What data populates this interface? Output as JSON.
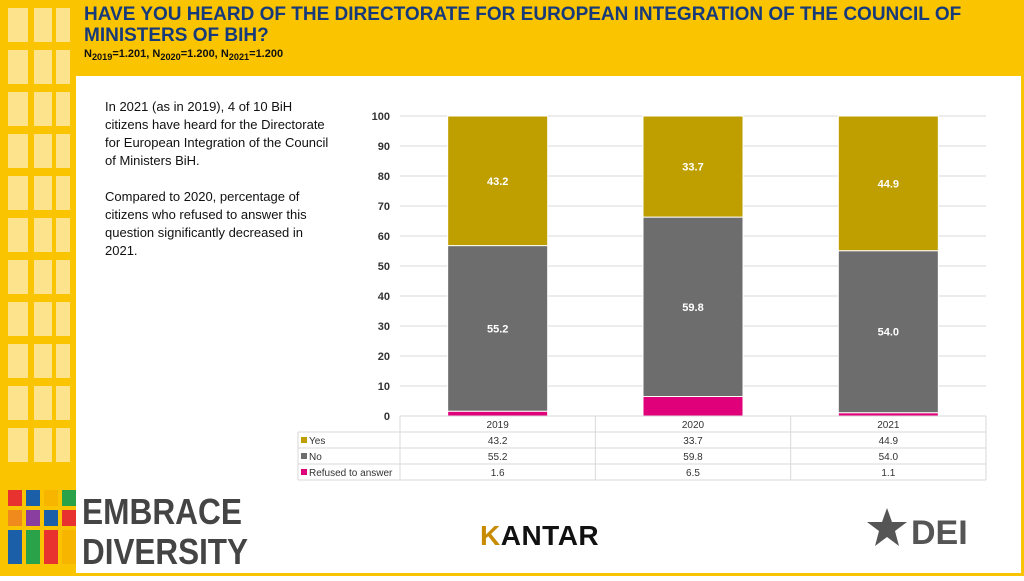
{
  "header": {
    "title": "HAVE YOU HEARD OF THE DIRECTORATE FOR EUROPEAN INTEGRATION OF THE COUNCIL OF MINISTERS OF BIH?",
    "n_parts": [
      {
        "prefix": "N",
        "sub": "2019",
        "value": "=1.201, "
      },
      {
        "prefix": "N",
        "sub": "2020",
        "value": "=1.200, "
      },
      {
        "prefix": "N",
        "sub": "2021",
        "value": "=1.200"
      }
    ]
  },
  "notes": {
    "p1": "In 2021 (as in 2019), 4 of 10 BiH citizens have heard for the Directorate for European Integration of the Council of Ministers BiH.",
    "p2": "Compared to 2020, percentage of citizens who refused to answer this question significantly decreased in 2021."
  },
  "logos": {
    "embrace_line1": "EMBRACE",
    "embrace_line2": "DIVERSITY",
    "kantar_k": "K",
    "kantar_rest": "ANTAR",
    "dei": "DEI"
  },
  "colors": {
    "yes": "#bf9f00",
    "no": "#6d6d6d",
    "refused": "#e0007a",
    "brand_yellow": "#fbc400",
    "title_blue": "#173a7a"
  },
  "chart_data": {
    "type": "bar",
    "stacked": true,
    "categories": [
      "2019",
      "2020",
      "2021"
    ],
    "series": [
      {
        "name": "Yes",
        "values": [
          43.2,
          33.7,
          44.9
        ],
        "labels": [
          "43.2",
          "33.7",
          "44.9"
        ]
      },
      {
        "name": "No",
        "values": [
          55.2,
          59.8,
          54.0
        ],
        "labels": [
          "55.2",
          "59.8",
          "54.0"
        ]
      },
      {
        "name": "Refused to answer",
        "values": [
          1.6,
          6.5,
          1.1
        ],
        "labels": [
          "1.6",
          "6.5",
          "1.1"
        ]
      }
    ],
    "ylim": [
      0,
      100
    ],
    "yticks": [
      "0",
      "10",
      "20",
      "30",
      "40",
      "50",
      "60",
      "70",
      "80",
      "90",
      "100"
    ],
    "grid": true,
    "data_table": true
  }
}
